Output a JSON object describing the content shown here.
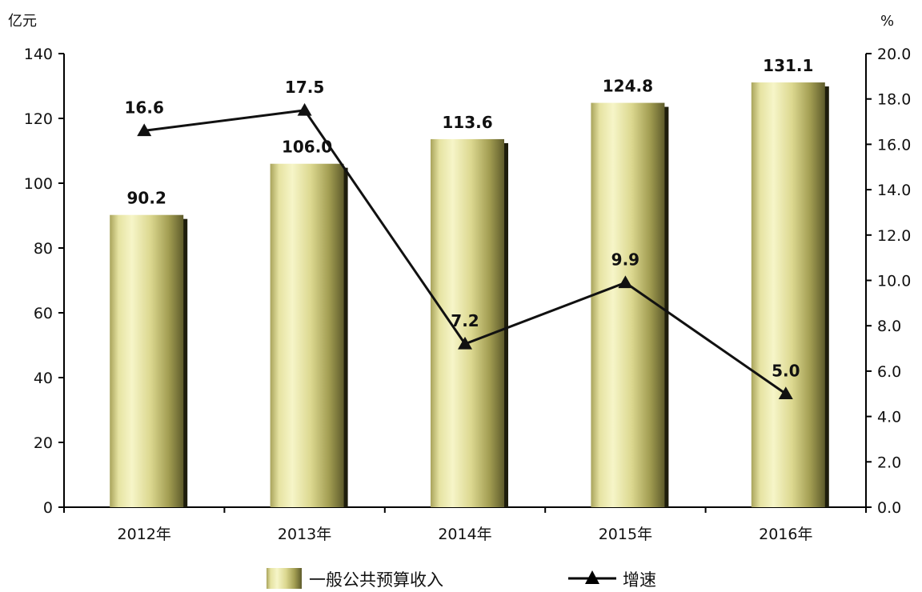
{
  "chart_data": {
    "type": "bar",
    "categories": [
      "2012年",
      "2013年",
      "2014年",
      "2015年",
      "2016年"
    ],
    "series": [
      {
        "name": "一般公共预算收入",
        "type": "bar",
        "axis": "left",
        "values": [
          90.2,
          106.0,
          113.6,
          124.8,
          131.1
        ],
        "labels": [
          "90.2",
          "106.0",
          "113.6",
          "124.8",
          "131.1"
        ]
      },
      {
        "name": "增速",
        "type": "line",
        "axis": "right",
        "marker": "triangle",
        "values": [
          16.6,
          17.5,
          7.2,
          9.9,
          5.0
        ],
        "labels": [
          "16.6",
          "17.5",
          "7.2",
          "9.9",
          "5.0"
        ]
      }
    ],
    "y_left": {
      "unit": "亿元",
      "min": 0,
      "max": 140,
      "ticks": [
        "0",
        "20",
        "40",
        "60",
        "80",
        "100",
        "120",
        "140"
      ]
    },
    "y_right": {
      "unit": "%",
      "min": 0,
      "max": 20,
      "ticks": [
        "0.0",
        "2.0",
        "4.0",
        "6.0",
        "8.0",
        "10.0",
        "12.0",
        "14.0",
        "16.0",
        "18.0",
        "20.0"
      ]
    },
    "grid": false,
    "legend_position": "bottom",
    "colors": {
      "bar_light": "#f2f2b4",
      "bar_mid": "#c9c57a",
      "bar_dark": "#5c5a2a",
      "line": "#111111"
    }
  }
}
